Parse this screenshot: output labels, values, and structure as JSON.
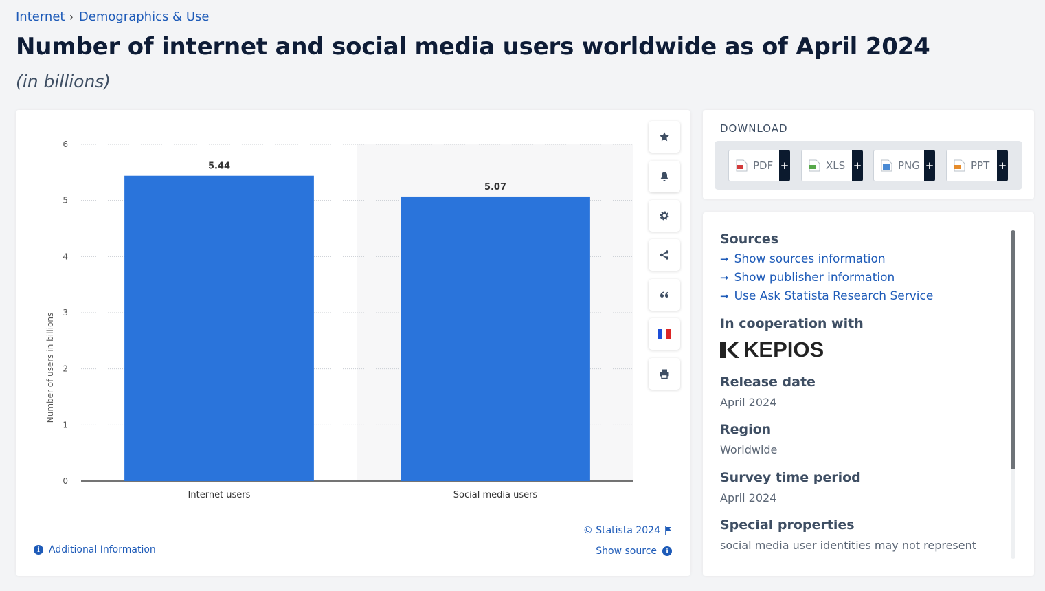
{
  "breadcrumb": {
    "items": [
      "Internet",
      "Demographics & Use"
    ],
    "separator": "›"
  },
  "page_title": "Number of internet and social media users worldwide as of April 2024",
  "page_subtitle": "(in billions)",
  "chart_data": {
    "type": "bar",
    "categories": [
      "Internet users",
      "Social media users"
    ],
    "values": [
      5.44,
      5.07
    ],
    "value_labels": [
      "5.44",
      "5.07"
    ],
    "ylabel": "Number of users in billions",
    "xlabel": "",
    "ylim": [
      0,
      6
    ],
    "yticks": [
      0,
      1,
      2,
      3,
      4,
      5,
      6
    ],
    "grid": true,
    "bar_color": "#2a74db"
  },
  "chart_footer": {
    "copyright": "© Statista 2024",
    "show_source": "Show source",
    "additional_info": "Additional Information"
  },
  "toolbar": [
    "star-icon",
    "bell-icon",
    "gear-icon",
    "share-icon",
    "quote-icon",
    "flag-fr-icon",
    "print-icon"
  ],
  "download": {
    "title": "DOWNLOAD",
    "formats": [
      {
        "label": "PDF",
        "icon": "pdf-icon",
        "color": "#d33b3b"
      },
      {
        "label": "XLS",
        "icon": "xls-icon",
        "color": "#57a84a"
      },
      {
        "label": "PNG",
        "icon": "png-icon",
        "color": "#4a8ad4"
      },
      {
        "label": "PPT",
        "icon": "ppt-icon",
        "color": "#e58b2a"
      }
    ],
    "plus": "+"
  },
  "info": {
    "sources_heading": "Sources",
    "links": [
      "Show sources information",
      "Show publisher information",
      "Use Ask Statista Research Service"
    ],
    "cooperation_heading": "In cooperation with",
    "partner_logo_text": "KEPIOS",
    "release_heading": "Release date",
    "release_value": "April 2024",
    "region_heading": "Region",
    "region_value": "Worldwide",
    "survey_heading": "Survey time period",
    "survey_value": "April 2024",
    "special_heading": "Special properties",
    "special_value": "social media user identities may not represent"
  }
}
